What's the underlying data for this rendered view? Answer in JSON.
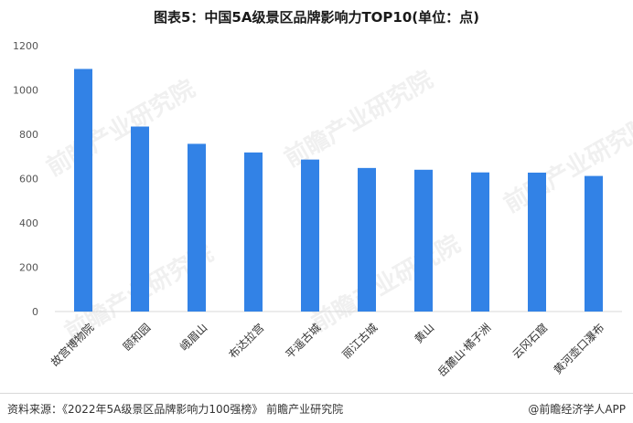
{
  "title": "图表5：中国5A级景区品牌影响力TOP10(单位：点)",
  "footer": {
    "source": "资料来源：《2022年5A级景区品牌影响力100强榜》 前瞻产业研究院",
    "brand": "@前瞻经济学人APP"
  },
  "watermark": "前瞻产业研究院",
  "colors": {
    "bar": "#3282e6",
    "grid": "#d9d9d9",
    "axis_text": "#555555"
  },
  "chart_data": {
    "type": "bar",
    "title": "图表5：中国5A级景区品牌影响力TOP10(单位：点)",
    "xlabel": "",
    "ylabel": "",
    "ylim": [
      0,
      1200
    ],
    "yticks": [
      0,
      200,
      400,
      600,
      800,
      1000,
      1200
    ],
    "grid": false,
    "categories": [
      "故宫博物院",
      "颐和园",
      "峨眉山",
      "布达拉宫",
      "平遥古城",
      "丽江古城",
      "黄山",
      "岳麓山·橘子洲",
      "云冈石窟",
      "黄河壶口瀑布"
    ],
    "values": [
      1095,
      835,
      757,
      718,
      686,
      648,
      640,
      628,
      627,
      612
    ]
  }
}
